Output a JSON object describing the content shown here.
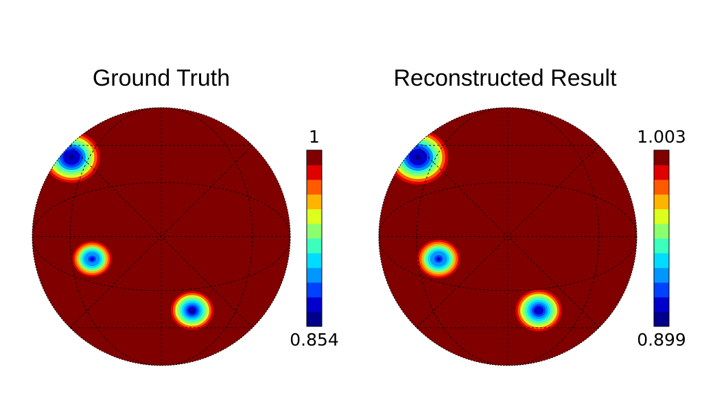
{
  "chart_data": [
    {
      "type": "heatmap",
      "title": "Ground Truth",
      "colormap": "jet",
      "levels": 12,
      "colorbar": {
        "max_label": "1",
        "min_label": "0.854",
        "vmax": 1.0,
        "vmin": 0.854
      },
      "background_value": 1.0,
      "blobs": [
        {
          "lon": -62,
          "lat": 38,
          "radius": 16,
          "min_value": 0.854
        },
        {
          "lon": -33,
          "lat": -10,
          "radius": 11,
          "min_value": 0.87
        },
        {
          "lon": 17,
          "lat": -35,
          "radius": 12,
          "min_value": 0.86
        }
      ],
      "grid": true
    },
    {
      "type": "heatmap",
      "title": "Reconstructed Result",
      "colormap": "jet",
      "levels": 12,
      "colorbar": {
        "max_label": "1.003",
        "min_label": "0.899",
        "vmax": 1.003,
        "vmin": 0.899
      },
      "background_value": 1.003,
      "blobs": [
        {
          "lon": -62,
          "lat": 38,
          "radius": 17,
          "min_value": 0.899
        },
        {
          "lon": -33,
          "lat": -10,
          "radius": 12,
          "min_value": 0.91
        },
        {
          "lon": 17,
          "lat": -35,
          "radius": 13,
          "min_value": 0.905
        }
      ],
      "grid": true
    }
  ],
  "colors": {
    "jet_levels": [
      "#00008b",
      "#0000cd",
      "#0041ff",
      "#0096ff",
      "#00dcff",
      "#3cffbe",
      "#8cff6e",
      "#dcff1e",
      "#ffb400",
      "#ff5a00",
      "#e00000",
      "#800000"
    ]
  }
}
